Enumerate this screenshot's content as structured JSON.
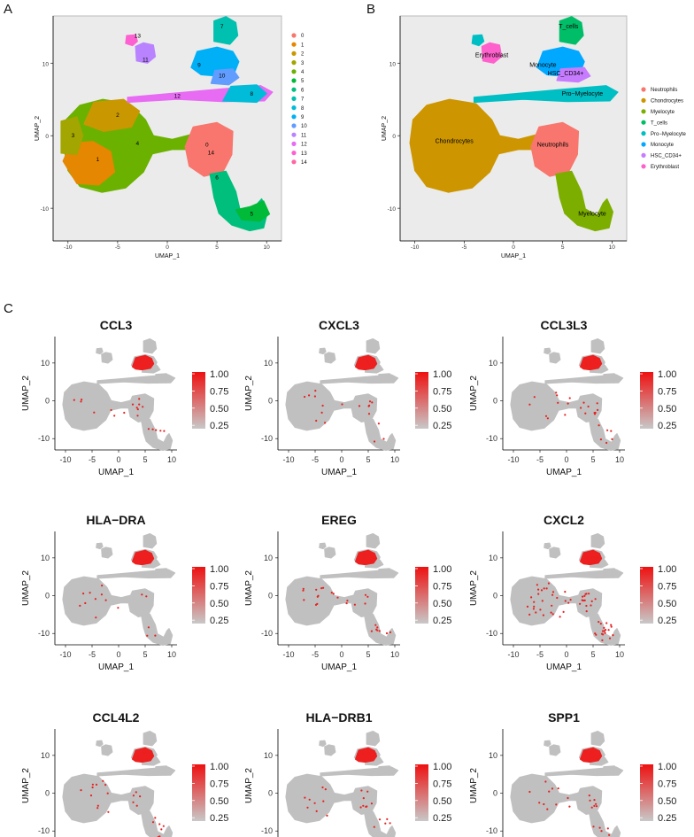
{
  "figure": {
    "panel_labels": [
      "A",
      "B",
      "C"
    ]
  },
  "chart_data": [
    {
      "id": "A",
      "type": "scatter",
      "title": "",
      "xlabel": "UMAP_1",
      "ylabel": "UMAP_2",
      "xlim": [
        -11.5,
        11.5
      ],
      "ylim": [
        -14.5,
        16.5
      ],
      "xticks": [
        -10,
        -5,
        0,
        5,
        10
      ],
      "yticks": [
        -10,
        0,
        10
      ],
      "legend_position": "right",
      "legend": [
        "0",
        "1",
        "2",
        "3",
        "4",
        "5",
        "6",
        "7",
        "8",
        "9",
        "10",
        "11",
        "12",
        "13",
        "14"
      ],
      "colors": [
        "#f8766d",
        "#e58700",
        "#c99800",
        "#a3a500",
        "#6bb100",
        "#00ba38",
        "#00bf7d",
        "#00c0af",
        "#00bcd8",
        "#00b0f6",
        "#619cff",
        "#b983ff",
        "#e76bf3",
        "#fd61d1",
        "#ff67a4"
      ],
      "cluster_labels": [
        {
          "text": "0",
          "x": 4.0,
          "y": -1.5
        },
        {
          "text": "14",
          "x": 4.4,
          "y": -2.6
        },
        {
          "text": "1",
          "x": -7.0,
          "y": -3.5
        },
        {
          "text": "2",
          "x": -5.0,
          "y": 2.6
        },
        {
          "text": "3",
          "x": -9.5,
          "y": -0.2
        },
        {
          "text": "4",
          "x": -3.0,
          "y": -1.3
        },
        {
          "text": "5",
          "x": 8.5,
          "y": -11.0
        },
        {
          "text": "6",
          "x": 5.0,
          "y": -6.0
        },
        {
          "text": "7",
          "x": 5.5,
          "y": 14.8
        },
        {
          "text": "8",
          "x": 8.5,
          "y": 5.5
        },
        {
          "text": "9",
          "x": 3.2,
          "y": 9.5
        },
        {
          "text": "10",
          "x": 5.5,
          "y": 8.0
        },
        {
          "text": "11",
          "x": -2.2,
          "y": 10.2
        },
        {
          "text": "12",
          "x": 1.0,
          "y": 5.2
        },
        {
          "text": "13",
          "x": -3.0,
          "y": 13.5
        }
      ]
    },
    {
      "id": "B",
      "type": "scatter",
      "title": "",
      "xlabel": "UMAP_1",
      "ylabel": "UMAP_2",
      "xlim": [
        -11.5,
        11.5
      ],
      "ylim": [
        -14.5,
        16.5
      ],
      "xticks": [
        -10,
        -5,
        0,
        5,
        10
      ],
      "yticks": [
        -10,
        0,
        10
      ],
      "legend_position": "right",
      "legend": [
        "Neutrophils",
        "Chondrocytes",
        "Myelocyte",
        "T_cells",
        "Pro−Myelocyte",
        "Monocyte",
        "HSC_CD34+",
        "Erythroblast"
      ],
      "colors": [
        "#f8766d",
        "#cd9600",
        "#7cae00",
        "#00be67",
        "#00bfc4",
        "#00a9ff",
        "#c77cff",
        "#ff61cc"
      ],
      "cluster_labels": [
        {
          "text": "Chondrocytes",
          "x": -6.0,
          "y": -1.0
        },
        {
          "text": "Neutrophils",
          "x": 4.0,
          "y": -1.5
        },
        {
          "text": "Myelocyte",
          "x": 8.0,
          "y": -11.0
        },
        {
          "text": "T_cells",
          "x": 5.6,
          "y": 14.8
        },
        {
          "text": "Erythroblast",
          "x": -2.2,
          "y": 10.8
        },
        {
          "text": "Monocyte",
          "x": 3.0,
          "y": 9.5
        },
        {
          "text": "HSC_CD34+",
          "x": 5.3,
          "y": 8.3
        },
        {
          "text": "Pro−Myelocyte",
          "x": 7.0,
          "y": 5.5
        }
      ]
    },
    {
      "id": "C",
      "type": "scatter",
      "xlabel": "UMAP_1",
      "ylabel": "UMAP_2",
      "xlim": [
        -12,
        11
      ],
      "ylim": [
        -13,
        17
      ],
      "xticks": [
        -10,
        -5,
        0,
        5,
        10
      ],
      "yticks": [
        -10,
        0,
        10
      ],
      "colorbar": {
        "ticks": [
          "1.00",
          "0.75",
          "0.50",
          "0.25"
        ],
        "low": "#c8c8c8",
        "high": "#ee1111",
        "legend_position": "right"
      },
      "genes": [
        "CCL3",
        "CXCL3",
        "CCL3L3",
        "HLA−DRA",
        "EREG",
        "CXCL2",
        "CCL4L2",
        "HLA−DRB1",
        "SPP1"
      ]
    }
  ]
}
